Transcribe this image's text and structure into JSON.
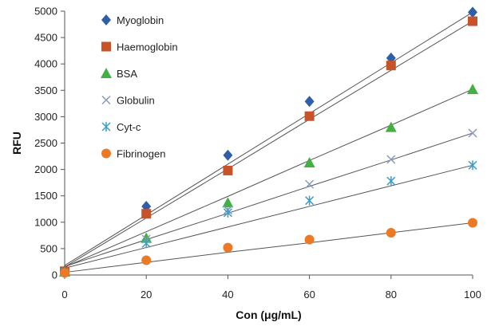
{
  "chart_data": {
    "type": "scatter",
    "xlabel": "Con (μg/mL)",
    "ylabel": "RFU",
    "xlim": [
      0,
      100
    ],
    "ylim": [
      0,
      5000
    ],
    "x_ticks": [
      0,
      20,
      40,
      60,
      80,
      100
    ],
    "y_ticks": [
      0,
      500,
      1000,
      1500,
      2000,
      2500,
      3000,
      3500,
      4000,
      4500,
      5000
    ],
    "legend": "upper-left, inside plot",
    "grid": false,
    "trendlines": true,
    "x": [
      0,
      20,
      40,
      60,
      80,
      100
    ],
    "series": [
      {
        "name": "Myoglobin",
        "marker": "diamond",
        "color": "#2e5fa8",
        "values": [
          80,
          1300,
          2270,
          3290,
          4110,
          4980
        ],
        "trend": [
          180,
          1140,
          2100,
          3060,
          4020,
          4980
        ]
      },
      {
        "name": "Haemoglobin",
        "marker": "square",
        "color": "#c8522a",
        "values": [
          70,
          1160,
          1980,
          3010,
          3970,
          4810
        ],
        "trend": [
          150,
          1080,
          2010,
          2950,
          3880,
          4810
        ]
      },
      {
        "name": "BSA",
        "marker": "triangle",
        "color": "#44b043",
        "values": [
          60,
          700,
          1370,
          2130,
          2800,
          3520
        ],
        "trend": [
          150,
          820,
          1490,
          2170,
          2840,
          3520
        ]
      },
      {
        "name": "Globulin",
        "marker": "x",
        "color": "#8a9bbf",
        "values": [
          50,
          680,
          1230,
          1720,
          2190,
          2690
        ],
        "trend": [
          160,
          670,
          1170,
          1680,
          2180,
          2690
        ]
      },
      {
        "name": "Cyt-c",
        "marker": "star",
        "color": "#3a9fc8",
        "values": [
          50,
          600,
          1180,
          1410,
          1780,
          2080
        ],
        "trend": [
          130,
          520,
          910,
          1300,
          1690,
          2080
        ]
      },
      {
        "name": "Fibrinogen",
        "marker": "circle",
        "color": "#ec7a25",
        "values": [
          40,
          280,
          520,
          670,
          800,
          990
        ],
        "trend": [
          50,
          240,
          430,
          610,
          800,
          990
        ]
      }
    ]
  }
}
